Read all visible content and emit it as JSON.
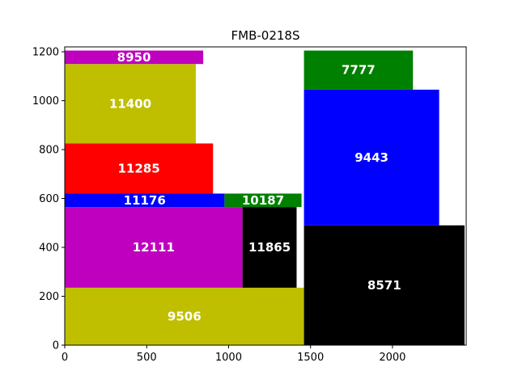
{
  "chart_data": {
    "type": "rectangle-packing",
    "title": "FMB-0218S",
    "xlabel": "",
    "ylabel": "",
    "xlim": [
      0,
      2450
    ],
    "ylim": [
      0,
      1220
    ],
    "x_ticks": [
      0,
      500,
      1000,
      1500,
      2000
    ],
    "y_ticks": [
      0,
      200,
      400,
      600,
      800,
      1000,
      1200
    ],
    "grid": false,
    "rectangles": [
      {
        "label": "9506",
        "x0": 0,
        "x1": 1460,
        "y0": 0,
        "y1": 235,
        "color": "#bfbf00"
      },
      {
        "label": "12111",
        "x0": 0,
        "x1": 1085,
        "y0": 235,
        "y1": 565,
        "color": "#bf00bf"
      },
      {
        "label": "11865",
        "x0": 1085,
        "x1": 1415,
        "y0": 235,
        "y1": 565,
        "color": "#000000"
      },
      {
        "label": "11176",
        "x0": 0,
        "x1": 975,
        "y0": 565,
        "y1": 620,
        "color": "#0000ff"
      },
      {
        "label": "10187",
        "x0": 975,
        "x1": 1445,
        "y0": 565,
        "y1": 620,
        "color": "#008000"
      },
      {
        "label": "11285",
        "x0": 0,
        "x1": 905,
        "y0": 620,
        "y1": 825,
        "color": "#ff0000"
      },
      {
        "label": "11400",
        "x0": 0,
        "x1": 800,
        "y0": 825,
        "y1": 1150,
        "color": "#bfbf00"
      },
      {
        "label": "8950",
        "x0": 0,
        "x1": 845,
        "y0": 1150,
        "y1": 1205,
        "color": "#bf00bf"
      },
      {
        "label": "8571",
        "x0": 1460,
        "x1": 2440,
        "y0": 0,
        "y1": 490,
        "color": "#000000"
      },
      {
        "label": "9443",
        "x0": 1460,
        "x1": 2285,
        "y0": 490,
        "y1": 1045,
        "color": "#0000ff"
      },
      {
        "label": "7777",
        "x0": 1460,
        "x1": 2125,
        "y0": 1045,
        "y1": 1205,
        "color": "#008000"
      }
    ]
  }
}
